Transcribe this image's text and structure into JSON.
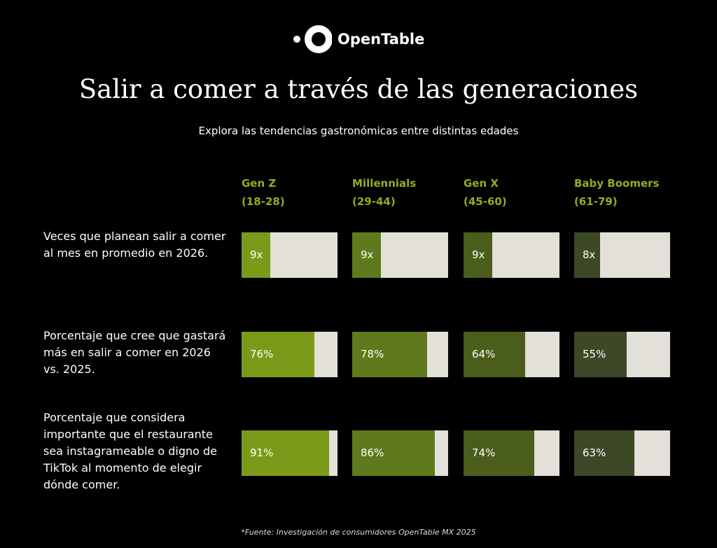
{
  "brand": "OpenTable",
  "title": "Salir a comer a través de las generaciones",
  "subtitle": "Explora las tendencias gastronómicas entre distintas edades",
  "chart_data": {
    "type": "bar",
    "categories": [
      "Gen Z",
      "Millennials",
      "Gen X",
      "Baby Boomers"
    ],
    "category_ranges": [
      "(18-28)",
      "(29-44)",
      "(45-60)",
      "(61-79)"
    ],
    "colors": [
      "#7b9a19",
      "#5f7a1c",
      "#4a5d1b",
      "#3c4826"
    ],
    "track_color": "#e3e0d9",
    "rows": [
      {
        "label": "Veces que planean salir a comer al mes en promedio en 2026.",
        "xlim": [
          0,
          30
        ],
        "values": [
          9,
          9,
          9,
          8
        ],
        "value_labels": [
          "9x",
          "9x",
          "9x",
          "8x"
        ]
      },
      {
        "label": "Porcentaje que cree que gastará más en salir a comer en 2026 vs. 2025.",
        "xlim": [
          0,
          100
        ],
        "values": [
          76,
          78,
          64,
          55
        ],
        "value_labels": [
          "76%",
          "78%",
          "64%",
          "55%"
        ]
      },
      {
        "label": "Porcentaje que considera importante que el restaurante sea instagrameable o digno de TikTok al momento de elegir dónde comer.",
        "xlim": [
          0,
          100
        ],
        "values": [
          91,
          86,
          74,
          63
        ],
        "value_labels": [
          "91%",
          "86%",
          "74%",
          "63%"
        ]
      }
    ]
  },
  "footnote": "*Fuente: Investigación de consumidores OpenTable MX 2025"
}
